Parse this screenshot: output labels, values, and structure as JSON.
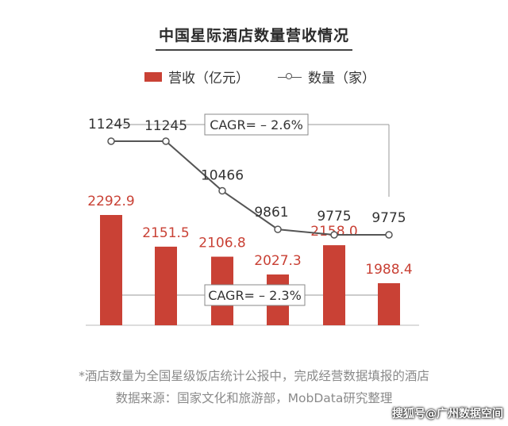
{
  "title": "中国星际酒店数量营收情况",
  "legend": {
    "bar_label": "营收（亿元）",
    "line_label": "数量（家）"
  },
  "colors": {
    "bar": "#c94135",
    "line": "#555555",
    "bar_label": "#c94135",
    "line_label": "#333333"
  },
  "chart_data": {
    "type": "bar",
    "categories": [
      "",
      "",
      "",
      "",
      "",
      ""
    ],
    "series": [
      {
        "name": "营收（亿元）",
        "type": "bar",
        "values": [
          2292.9,
          2151.5,
          2106.8,
          2027.3,
          2158.0,
          1988.4
        ],
        "labels": [
          "2292.9",
          "2151.5",
          "2106.8",
          "2027.3",
          "2158.0",
          "1988.4"
        ]
      },
      {
        "name": "数量（家）",
        "type": "line",
        "values": [
          11245,
          11245,
          10466,
          9861,
          9775,
          9775
        ],
        "labels": [
          "11245",
          "11245",
          "10466",
          "9861",
          "9775",
          "9775"
        ]
      }
    ],
    "annotations": [
      "CAGR= – 2.6%",
      "CAGR= – 2.3%"
    ],
    "grid": false
  },
  "footer": {
    "line1": "*酒店数量为全国星级饭店统计公报中，完成经营数据填报的酒店",
    "line2": "数据来源：国家文化和旅游部，MobData研究整理"
  },
  "watermark": "搜狐号@广州数据空间"
}
